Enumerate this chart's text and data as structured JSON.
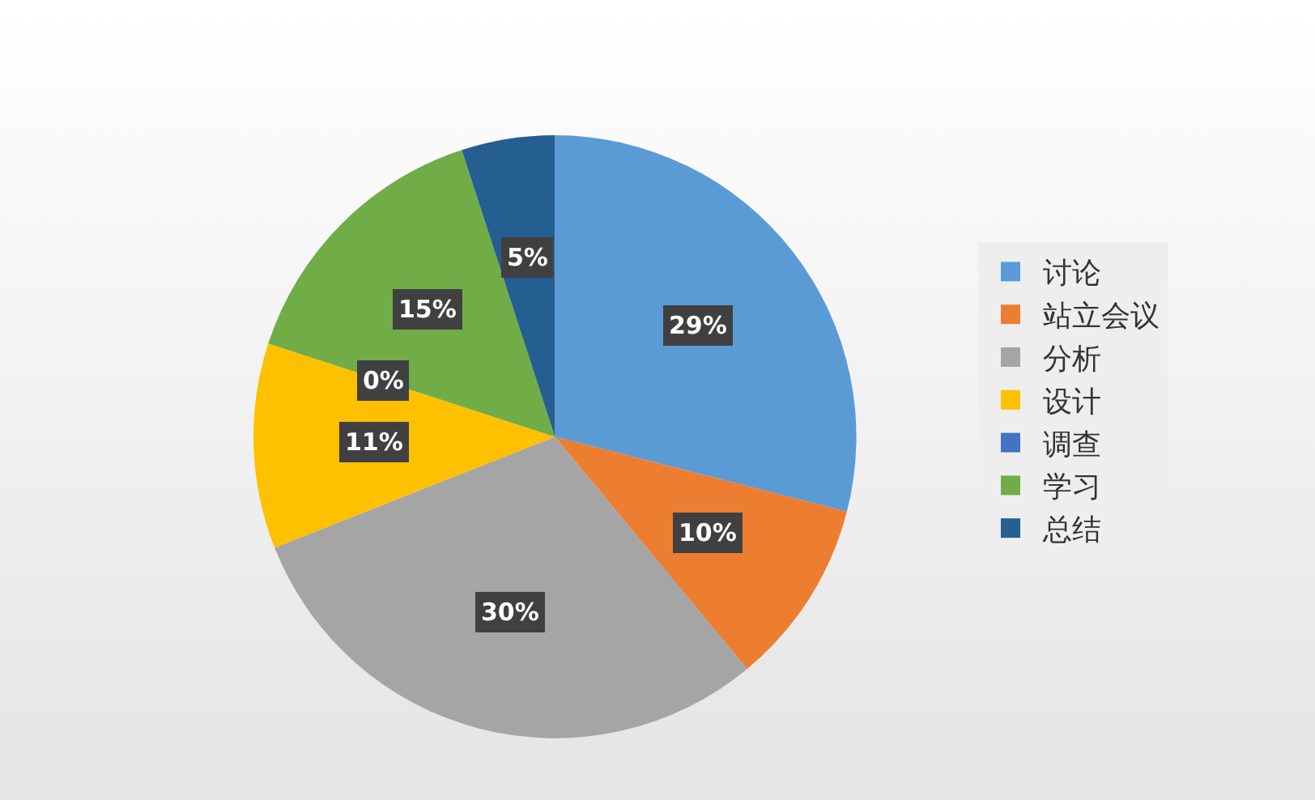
{
  "chart_data": {
    "type": "pie",
    "categories": [
      "讨论",
      "站立会议",
      "分析",
      "设计",
      "调查",
      "学习",
      "总结"
    ],
    "values": [
      29,
      10,
      30,
      11,
      0,
      15,
      5
    ],
    "value_labels": [
      "29%",
      "10%",
      "30%",
      "11%",
      "0%",
      "15%",
      "5%"
    ],
    "colors": [
      "#5b9bd5",
      "#ed7d31",
      "#a5a5a5",
      "#ffc000",
      "#4472c4",
      "#70ad47",
      "#255e91"
    ],
    "legend": "right"
  }
}
